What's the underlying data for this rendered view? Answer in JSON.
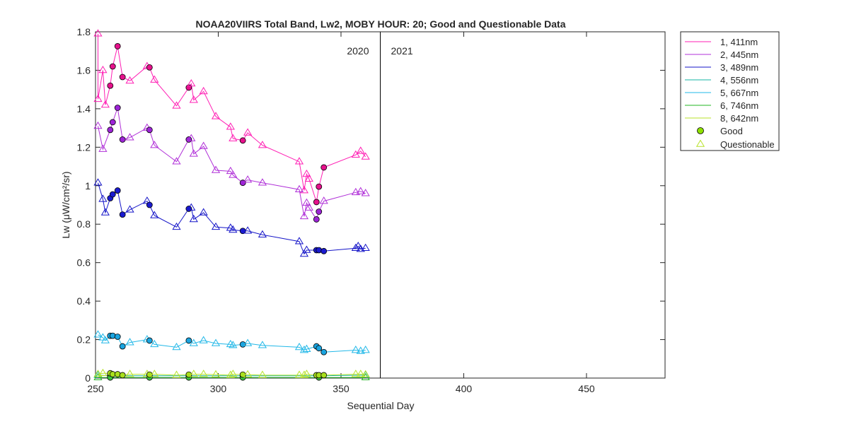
{
  "chart_data": {
    "type": "line",
    "title": "NOAA20VIIRS Total Band,  Lw2, MOBY HOUR: 20;  Good and Questionable Data",
    "xlabel": "Sequential Day",
    "ylabel": "Lw (μW/cm²/sr)",
    "xlim": [
      250,
      482
    ],
    "ylim": [
      0,
      1.8
    ],
    "xticks": [
      250,
      300,
      350,
      400,
      450
    ],
    "yticks": [
      0,
      0.2,
      0.4,
      0.6,
      0.8,
      1,
      1.2,
      1.4,
      1.6,
      1.8
    ],
    "year_divider_x": 366,
    "year_labels": [
      "2020",
      "2021"
    ],
    "grid": false,
    "legend_position": "outside-right",
    "series": [
      {
        "name": "1, 411nm",
        "color": "#ff1fb4",
        "fill": "#e6118c",
        "points": [
          [
            251,
            1.79,
            "q"
          ],
          [
            251,
            1.45,
            "q"
          ],
          [
            253,
            1.6,
            "q"
          ],
          [
            254,
            1.42,
            "q"
          ],
          [
            256,
            1.52,
            "g"
          ],
          [
            257,
            1.62,
            "g"
          ],
          [
            259,
            1.725,
            "g"
          ],
          [
            261,
            1.565,
            "g"
          ],
          [
            264,
            1.545,
            "q"
          ],
          [
            271,
            1.62,
            "q"
          ],
          [
            272,
            1.615,
            "g"
          ],
          [
            274,
            1.55,
            "q"
          ],
          [
            283,
            1.415,
            "q"
          ],
          [
            288,
            1.51,
            "g"
          ],
          [
            289,
            1.53,
            "q"
          ],
          [
            290,
            1.445,
            "q"
          ],
          [
            294,
            1.49,
            "q"
          ],
          [
            299,
            1.36,
            "q"
          ],
          [
            305,
            1.305,
            "q"
          ],
          [
            306,
            1.245,
            "q"
          ],
          [
            310,
            1.235,
            "g"
          ],
          [
            312,
            1.275,
            "q"
          ],
          [
            318,
            1.21,
            "q"
          ],
          [
            333,
            1.125,
            "q"
          ],
          [
            335,
            0.975,
            "q"
          ],
          [
            336,
            1.06,
            "q"
          ],
          [
            337,
            1.035,
            "q"
          ],
          [
            340,
            0.915,
            "g"
          ],
          [
            341,
            0.995,
            "g"
          ],
          [
            343,
            1.095,
            "g"
          ],
          [
            356,
            1.16,
            "q"
          ],
          [
            358,
            1.18,
            "q"
          ],
          [
            360,
            1.15,
            "q"
          ]
        ]
      },
      {
        "name": "2, 445nm",
        "color": "#b030d8",
        "fill": "#9d24d6",
        "points": [
          [
            251,
            1.31,
            "q"
          ],
          [
            253,
            1.19,
            "q"
          ],
          [
            256,
            1.29,
            "g"
          ],
          [
            257,
            1.33,
            "g"
          ],
          [
            259,
            1.405,
            "g"
          ],
          [
            261,
            1.24,
            "g"
          ],
          [
            264,
            1.25,
            "q"
          ],
          [
            271,
            1.3,
            "q"
          ],
          [
            272,
            1.29,
            "g"
          ],
          [
            274,
            1.21,
            "q"
          ],
          [
            283,
            1.125,
            "q"
          ],
          [
            288,
            1.24,
            "g"
          ],
          [
            289,
            1.245,
            "q"
          ],
          [
            290,
            1.165,
            "q"
          ],
          [
            294,
            1.205,
            "q"
          ],
          [
            299,
            1.08,
            "q"
          ],
          [
            305,
            1.075,
            "q"
          ],
          [
            306,
            1.055,
            "q"
          ],
          [
            310,
            1.015,
            "g"
          ],
          [
            312,
            1.03,
            "q"
          ],
          [
            318,
            1.015,
            "q"
          ],
          [
            333,
            0.98,
            "q"
          ],
          [
            335,
            0.84,
            "q"
          ],
          [
            336,
            0.91,
            "q"
          ],
          [
            337,
            0.885,
            "q"
          ],
          [
            340,
            0.825,
            "g"
          ],
          [
            341,
            0.865,
            "g"
          ],
          [
            343,
            0.92,
            "q"
          ],
          [
            356,
            0.965,
            "q"
          ],
          [
            358,
            0.97,
            "q"
          ],
          [
            360,
            0.96,
            "q"
          ]
        ]
      },
      {
        "name": "3, 489nm",
        "color": "#1515c8",
        "fill": "#1a1ad0",
        "points": [
          [
            251,
            1.015,
            "q"
          ],
          [
            253,
            0.93,
            "q"
          ],
          [
            254,
            0.86,
            "q"
          ],
          [
            256,
            0.935,
            "g"
          ],
          [
            257,
            0.955,
            "g"
          ],
          [
            259,
            0.975,
            "g"
          ],
          [
            261,
            0.85,
            "g"
          ],
          [
            264,
            0.875,
            "q"
          ],
          [
            271,
            0.92,
            "q"
          ],
          [
            272,
            0.9,
            "g"
          ],
          [
            274,
            0.845,
            "q"
          ],
          [
            283,
            0.785,
            "q"
          ],
          [
            288,
            0.88,
            "g"
          ],
          [
            289,
            0.885,
            "q"
          ],
          [
            290,
            0.825,
            "q"
          ],
          [
            294,
            0.86,
            "q"
          ],
          [
            299,
            0.785,
            "q"
          ],
          [
            305,
            0.78,
            "q"
          ],
          [
            306,
            0.77,
            "q"
          ],
          [
            310,
            0.765,
            "g"
          ],
          [
            312,
            0.765,
            "q"
          ],
          [
            318,
            0.745,
            "q"
          ],
          [
            333,
            0.71,
            "q"
          ],
          [
            335,
            0.645,
            "q"
          ],
          [
            336,
            0.665,
            "q"
          ],
          [
            340,
            0.665,
            "g"
          ],
          [
            341,
            0.665,
            "g"
          ],
          [
            343,
            0.66,
            "g"
          ],
          [
            356,
            0.675,
            "q"
          ],
          [
            357,
            0.685,
            "q"
          ],
          [
            358,
            0.67,
            "q"
          ],
          [
            360,
            0.675,
            "q"
          ]
        ]
      },
      {
        "name": "4, 556nm",
        "color": "#14b4a4",
        "fill": "#14b4a4",
        "points": [
          [
            251,
            0.015,
            "q"
          ],
          [
            256,
            0.012,
            "g"
          ],
          [
            272,
            0.012,
            "g"
          ],
          [
            288,
            0.012,
            "g"
          ],
          [
            310,
            0.012,
            "g"
          ],
          [
            341,
            0.012,
            "g"
          ],
          [
            360,
            0.015,
            "q"
          ]
        ]
      },
      {
        "name": "5, 667nm",
        "color": "#22b8e8",
        "fill": "#1aa4e0",
        "points": [
          [
            251,
            0.225,
            "q"
          ],
          [
            253,
            0.21,
            "q"
          ],
          [
            254,
            0.195,
            "q"
          ],
          [
            256,
            0.22,
            "g"
          ],
          [
            257,
            0.22,
            "g"
          ],
          [
            259,
            0.215,
            "g"
          ],
          [
            261,
            0.165,
            "g"
          ],
          [
            264,
            0.185,
            "q"
          ],
          [
            271,
            0.2,
            "q"
          ],
          [
            272,
            0.195,
            "g"
          ],
          [
            274,
            0.175,
            "q"
          ],
          [
            283,
            0.16,
            "q"
          ],
          [
            288,
            0.195,
            "g"
          ],
          [
            290,
            0.18,
            "q"
          ],
          [
            294,
            0.195,
            "q"
          ],
          [
            299,
            0.18,
            "q"
          ],
          [
            305,
            0.175,
            "q"
          ],
          [
            306,
            0.17,
            "q"
          ],
          [
            310,
            0.175,
            "g"
          ],
          [
            312,
            0.18,
            "q"
          ],
          [
            318,
            0.17,
            "q"
          ],
          [
            333,
            0.16,
            "q"
          ],
          [
            335,
            0.145,
            "q"
          ],
          [
            336,
            0.15,
            "q"
          ],
          [
            340,
            0.165,
            "g"
          ],
          [
            341,
            0.155,
            "g"
          ],
          [
            343,
            0.135,
            "g"
          ],
          [
            356,
            0.145,
            "q"
          ],
          [
            358,
            0.14,
            "q"
          ],
          [
            360,
            0.145,
            "q"
          ]
        ]
      },
      {
        "name": "6, 746nm",
        "color": "#22b422",
        "fill": "#3cc43c",
        "points": [
          [
            251,
            0.003,
            "q"
          ],
          [
            256,
            0.003,
            "g"
          ],
          [
            272,
            0.003,
            "g"
          ],
          [
            288,
            0.003,
            "g"
          ],
          [
            310,
            0.003,
            "g"
          ],
          [
            341,
            0.003,
            "g"
          ],
          [
            360,
            0.003,
            "q"
          ]
        ]
      },
      {
        "name": "8, 642nm",
        "color": "#b8e22a",
        "fill": "#a8e01c",
        "points": [
          [
            251,
            0.02,
            "q"
          ],
          [
            253,
            0.025,
            "q"
          ],
          [
            256,
            0.025,
            "g"
          ],
          [
            257,
            0.02,
            "g"
          ],
          [
            259,
            0.02,
            "g"
          ],
          [
            261,
            0.015,
            "g"
          ],
          [
            264,
            0.02,
            "q"
          ],
          [
            271,
            0.02,
            "q"
          ],
          [
            272,
            0.018,
            "g"
          ],
          [
            274,
            0.02,
            "q"
          ],
          [
            283,
            0.015,
            "q"
          ],
          [
            288,
            0.018,
            "g"
          ],
          [
            290,
            0.02,
            "q"
          ],
          [
            294,
            0.02,
            "q"
          ],
          [
            299,
            0.018,
            "q"
          ],
          [
            305,
            0.015,
            "q"
          ],
          [
            306,
            0.02,
            "q"
          ],
          [
            310,
            0.018,
            "g"
          ],
          [
            312,
            0.018,
            "q"
          ],
          [
            318,
            0.015,
            "q"
          ],
          [
            333,
            0.015,
            "q"
          ],
          [
            335,
            0.015,
            "q"
          ],
          [
            336,
            0.02,
            "q"
          ],
          [
            340,
            0.015,
            "g"
          ],
          [
            341,
            0.015,
            "g"
          ],
          [
            343,
            0.015,
            "g"
          ],
          [
            356,
            0.02,
            "q"
          ],
          [
            358,
            0.02,
            "q"
          ],
          [
            360,
            0.018,
            "q"
          ]
        ]
      }
    ],
    "legend": {
      "entries": [
        "1, 411nm",
        "2, 445nm",
        "3, 489nm",
        "4, 556nm",
        "5, 667nm",
        "6, 746nm",
        "8, 642nm"
      ],
      "good_label": "Good",
      "questionable_label": "Questionable",
      "marker_color": "#b8e22a",
      "good_marker_fill": "#8ee000"
    }
  }
}
